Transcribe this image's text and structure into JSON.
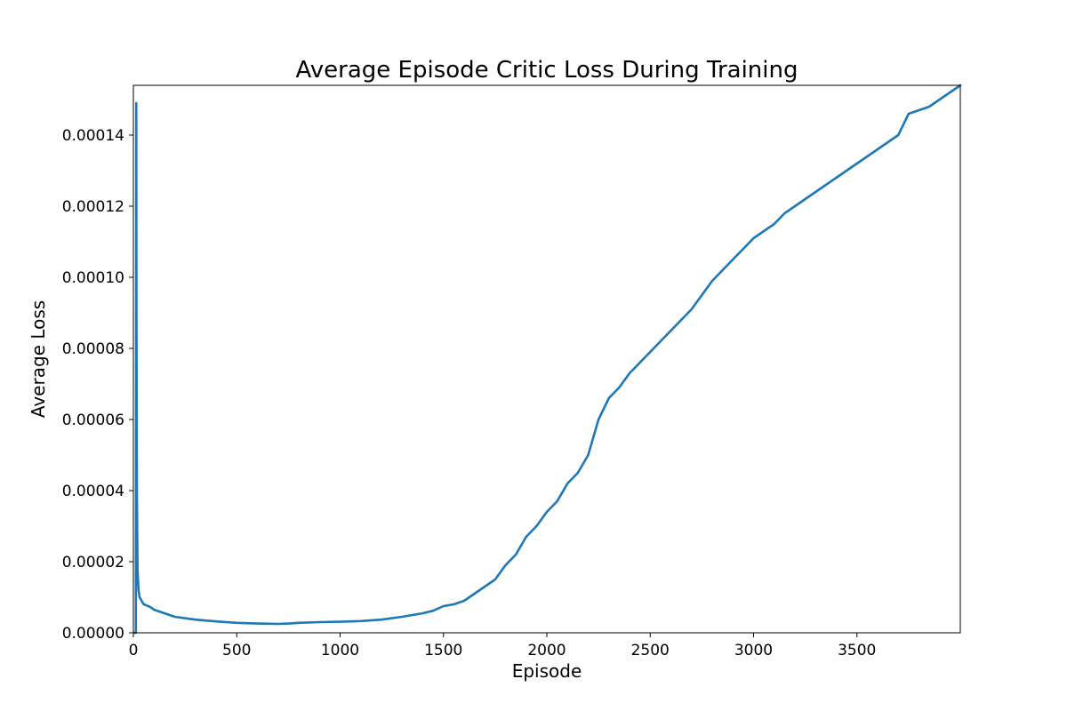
{
  "chart_data": {
    "type": "line",
    "title": "Average Episode Critic Loss During Training",
    "xlabel": "Episode",
    "ylabel": "Average Loss",
    "xlim": [
      0,
      4000
    ],
    "ylim": [
      0,
      0.000154
    ],
    "xticks": [
      0,
      500,
      1000,
      1500,
      2000,
      2500,
      3000,
      3500
    ],
    "xtick_labels": [
      "0",
      "500",
      "1000",
      "1500",
      "2000",
      "2500",
      "3000",
      "3500"
    ],
    "yticks": [
      0,
      2e-05,
      4e-05,
      6e-05,
      8e-05,
      0.0001,
      0.00012,
      0.00014
    ],
    "ytick_labels": [
      "0.00000",
      "0.00002",
      "0.00004",
      "0.00006",
      "0.00008",
      "0.00010",
      "0.00012",
      "0.00014"
    ],
    "grid": false,
    "colors": {
      "series": "#1f77b4"
    },
    "series": [
      {
        "name": "",
        "x": [
          1,
          12,
          14,
          15,
          17,
          20,
          25,
          30,
          40,
          50,
          60,
          80,
          100,
          150,
          200,
          300,
          400,
          500,
          600,
          700,
          750,
          800,
          900,
          1000,
          1100,
          1200,
          1300,
          1400,
          1450,
          1500,
          1550,
          1600,
          1650,
          1700,
          1750,
          1800,
          1850,
          1900,
          1950,
          2000,
          2050,
          2100,
          2150,
          2200,
          2250,
          2300,
          2350,
          2400,
          2450,
          2500,
          2550,
          2600,
          2650,
          2700,
          2750,
          2800,
          2850,
          2900,
          2950,
          3000,
          3050,
          3100,
          3150,
          3200,
          3250,
          3300,
          3350,
          3400,
          3450,
          3500,
          3550,
          3600,
          3650,
          3700,
          3750,
          3800,
          3850,
          3900,
          3950,
          4000
        ],
        "y": [
          0.0,
          0.0,
          0.000149,
          9e-05,
          4e-05,
          1.8e-05,
          1.2e-05,
          1e-05,
          9e-06,
          8e-06,
          7.8e-06,
          7.3e-06,
          6.5e-06,
          5.5e-06,
          4.5e-06,
          3.7e-06,
          3.2e-06,
          2.8e-06,
          2.6e-06,
          2.5e-06,
          2.6e-06,
          2.8e-06,
          3e-06,
          3.1e-06,
          3.3e-06,
          3.7e-06,
          4.5e-06,
          5.5e-06,
          6.2e-06,
          7.5e-06,
          8e-06,
          9e-06,
          1.1e-05,
          1.3e-05,
          1.5e-05,
          1.9e-05,
          2.2e-05,
          2.7e-05,
          3e-05,
          3.4e-05,
          3.7e-05,
          4.2e-05,
          4.5e-05,
          5e-05,
          6e-05,
          6.6e-05,
          6.9e-05,
          7.3e-05,
          7.6e-05,
          7.9e-05,
          8.2e-05,
          8.5e-05,
          8.8e-05,
          9.1e-05,
          9.5e-05,
          9.9e-05,
          0.000102,
          0.000105,
          0.000108,
          0.000111,
          0.000113,
          0.000115,
          0.000118,
          0.00012,
          0.000122,
          0.000124,
          0.000126,
          0.000128,
          0.00013,
          0.000132,
          0.000134,
          0.000136,
          0.000138,
          0.00014,
          0.000146,
          0.000147,
          0.000148,
          0.00015,
          0.000152,
          0.000155
        ]
      }
    ]
  }
}
